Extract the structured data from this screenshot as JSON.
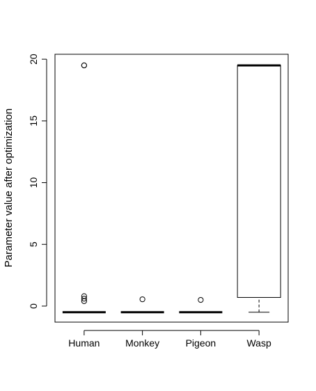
{
  "chart_data": {
    "type": "boxplot",
    "title": "",
    "xlabel": "",
    "ylabel": "Parameter value after optimization",
    "ylim": [
      -1.3,
      20.4
    ],
    "yticks": [
      0,
      5,
      10,
      15,
      20
    ],
    "grid": false,
    "legend": "none",
    "categories": [
      "Human",
      "Monkey",
      "Pigeon",
      "Wasp"
    ],
    "boxes": [
      {
        "category": "Human",
        "whisker_low": -0.5,
        "q1": -0.5,
        "median": -0.5,
        "q3": -0.5,
        "whisker_high": -0.5,
        "outliers": [
          19.5,
          19.5,
          0.8,
          0.6,
          0.4
        ]
      },
      {
        "category": "Monkey",
        "whisker_low": -0.5,
        "q1": -0.5,
        "median": -0.5,
        "q3": -0.5,
        "whisker_high": -0.5,
        "outliers": [
          0.55
        ]
      },
      {
        "category": "Pigeon",
        "whisker_low": -0.5,
        "q1": -0.5,
        "median": -0.5,
        "q3": -0.5,
        "whisker_high": -0.5,
        "outliers": [
          0.5
        ]
      },
      {
        "category": "Wasp",
        "whisker_low": -0.5,
        "q1": 0.7,
        "median": 19.5,
        "q3": 19.5,
        "whisker_high": 19.5,
        "outliers": []
      }
    ]
  }
}
